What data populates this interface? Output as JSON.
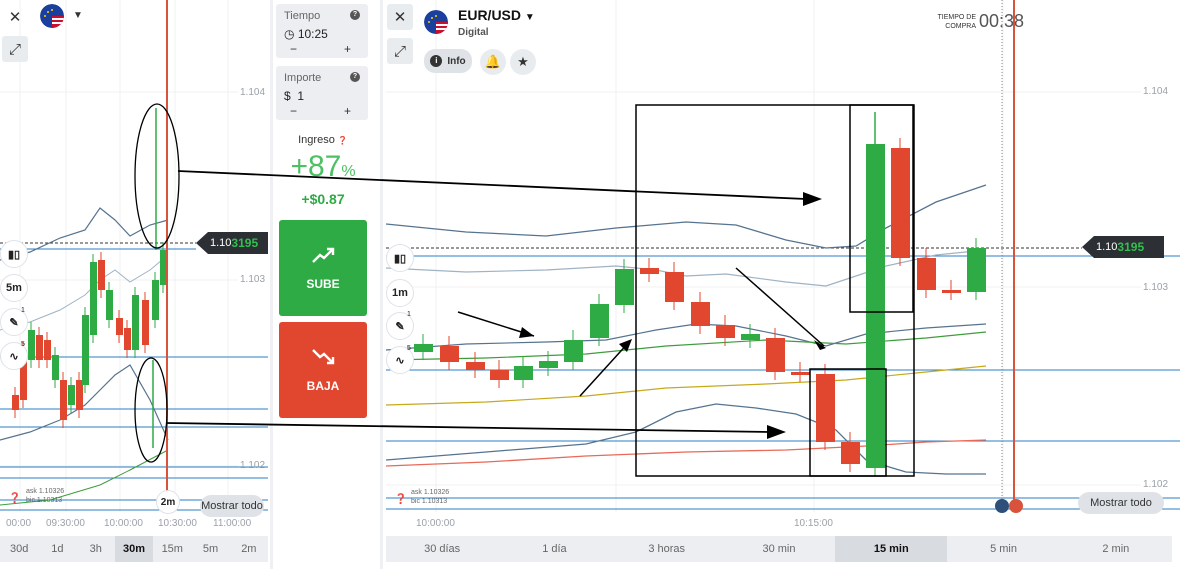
{
  "left": {
    "price_main": "1.10",
    "price_accent": "3195",
    "y_labels": [
      "1.104",
      "1.103",
      "1.102"
    ],
    "x_labels": [
      "00:00",
      "09:30:00",
      "10:00:00",
      "10:30:00",
      "11:00:00"
    ],
    "timeframes": [
      "30d",
      "1d",
      "3h",
      "30m",
      "15m",
      "5m",
      "2m"
    ],
    "selected_timeframe": "30m",
    "candle_period": "5m",
    "badge_1": "1",
    "badge_5": "5",
    "ask": "ask 1.10326",
    "bid": "bic  1.10313",
    "expiry": "2m",
    "show_all": "Mostrar todo"
  },
  "middle": {
    "time_label": "Tiempo",
    "time_value": "10:25",
    "amount_label": "Importe",
    "amount_currency": "$",
    "amount_value": "1",
    "minus": "−",
    "plus": "+",
    "income_label": "Ingreso",
    "income_value": "+87",
    "income_unit": "%",
    "profit": "+$0.87",
    "up_label": "SUBE",
    "down_label": "BAJA"
  },
  "right": {
    "asset": "EUR/USD",
    "asset_type": "Digital",
    "info_label": "Info",
    "purchase_time_label_1": "TIEMPO DE",
    "purchase_time_label_2": "COMPRA",
    "purchase_timer": "00:38",
    "price_main": "1.10",
    "price_accent": "3195",
    "y_labels": [
      "1.104",
      "1.103",
      "1.102"
    ],
    "x_labels": [
      "10:00:00",
      "10:15:00"
    ],
    "candle_period": "1m",
    "badge_1": "1",
    "badge_5": "5",
    "ask": "ask 1.10326",
    "bid": "bic  1.10313",
    "show_all": "Mostrar todo",
    "timeframes": [
      "30 días",
      "1 día",
      "3 horas",
      "30 min",
      "15 min",
      "5 min",
      "2 min"
    ],
    "selected_timeframe": "15 min"
  },
  "colors": {
    "up": "#2eab45",
    "down": "#e0472e",
    "price_accent": "#30c04e",
    "expiry_line": "#d9533c",
    "level_line": "#2a7fc4"
  },
  "icons": [
    "close-icon",
    "us-eu-flag-icon",
    "chevron-down-icon",
    "expand-icon",
    "candles-icon",
    "pencil-icon",
    "indicator-icon",
    "help-icon",
    "clock-icon",
    "trend-up-icon",
    "trend-down-icon",
    "info-icon",
    "bell-icon",
    "star-icon"
  ]
}
